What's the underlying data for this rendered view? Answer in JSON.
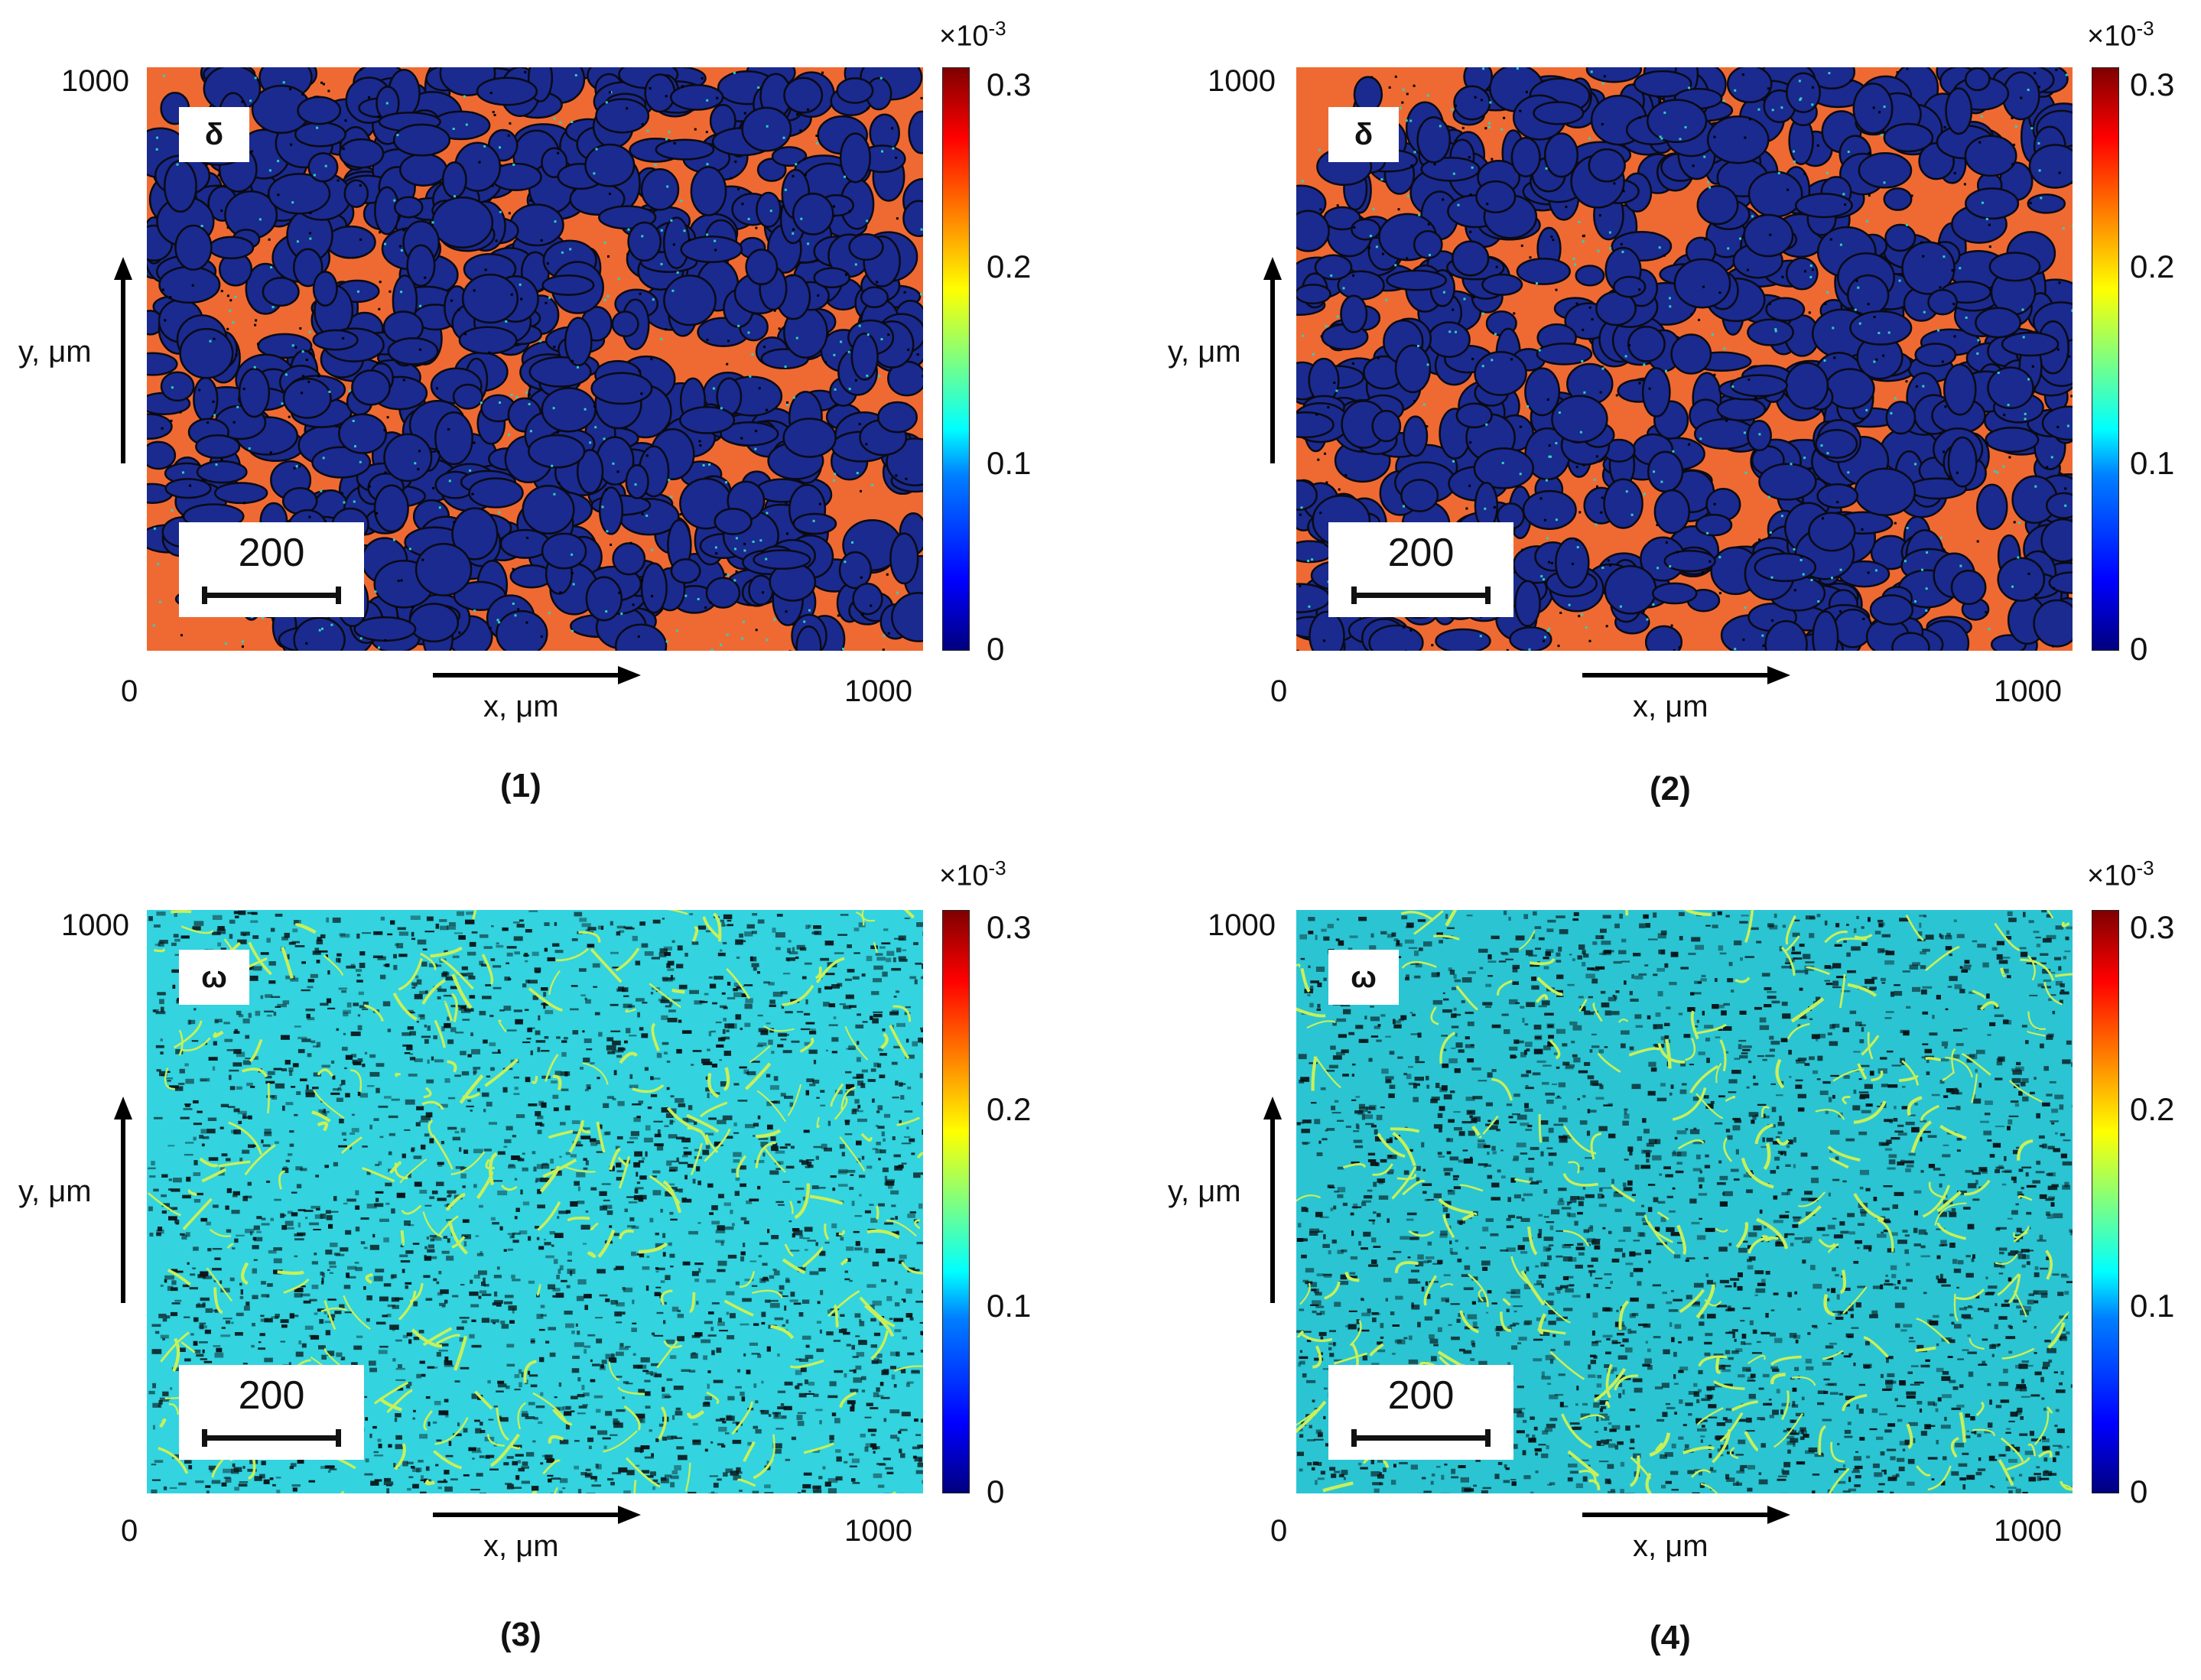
{
  "panels": [
    {
      "caption": "(1)",
      "phase": "δ",
      "scale_bar": "200",
      "x_ticks": [
        "0",
        "1000"
      ],
      "y_tick": "1000",
      "x_label": "x, μm",
      "y_label": "y, μm",
      "colorbar": {
        "exponent": "×10",
        "exponent_power": "-3",
        "ticks": [
          "0.3",
          "0.2",
          "0.1",
          "0"
        ]
      },
      "colors": {
        "background": "#1a2a8f",
        "network": "#ef6a32",
        "boundary": "#0a0a14"
      }
    },
    {
      "caption": "(2)",
      "phase": "δ",
      "scale_bar": "200",
      "x_ticks": [
        "0",
        "1000"
      ],
      "y_tick": "1000",
      "x_label": "x, μm",
      "y_label": "y, μm",
      "colorbar": {
        "exponent": "×10",
        "exponent_power": "-3",
        "ticks": [
          "0.3",
          "0.2",
          "0.1",
          "0"
        ]
      },
      "colors": {
        "background": "#1a2a8f",
        "network": "#ef6a32",
        "boundary": "#0a0a14"
      }
    },
    {
      "caption": "(3)",
      "phase": "ω",
      "scale_bar": "200",
      "x_ticks": [
        "0",
        "1000"
      ],
      "y_tick": "1000",
      "x_label": "x, μm",
      "y_label": "y, μm",
      "colorbar": {
        "exponent": "×10",
        "exponent_power": "-3",
        "ticks": [
          "0.3",
          "0.2",
          "0.1",
          "0"
        ]
      },
      "colors": {
        "background": "#33d3df",
        "network": "#c8f05a",
        "boundary": "#0a1418"
      }
    },
    {
      "caption": "(4)",
      "phase": "ω",
      "scale_bar": "200",
      "x_ticks": [
        "0",
        "1000"
      ],
      "y_tick": "1000",
      "x_label": "x, μm",
      "y_label": "y, μm",
      "colorbar": {
        "exponent": "×10",
        "exponent_power": "-3",
        "ticks": [
          "0.3",
          "0.2",
          "0.1",
          "0"
        ]
      },
      "colors": {
        "background": "#2bc4d2",
        "network": "#c8f05a",
        "boundary": "#0a1418"
      }
    }
  ]
}
